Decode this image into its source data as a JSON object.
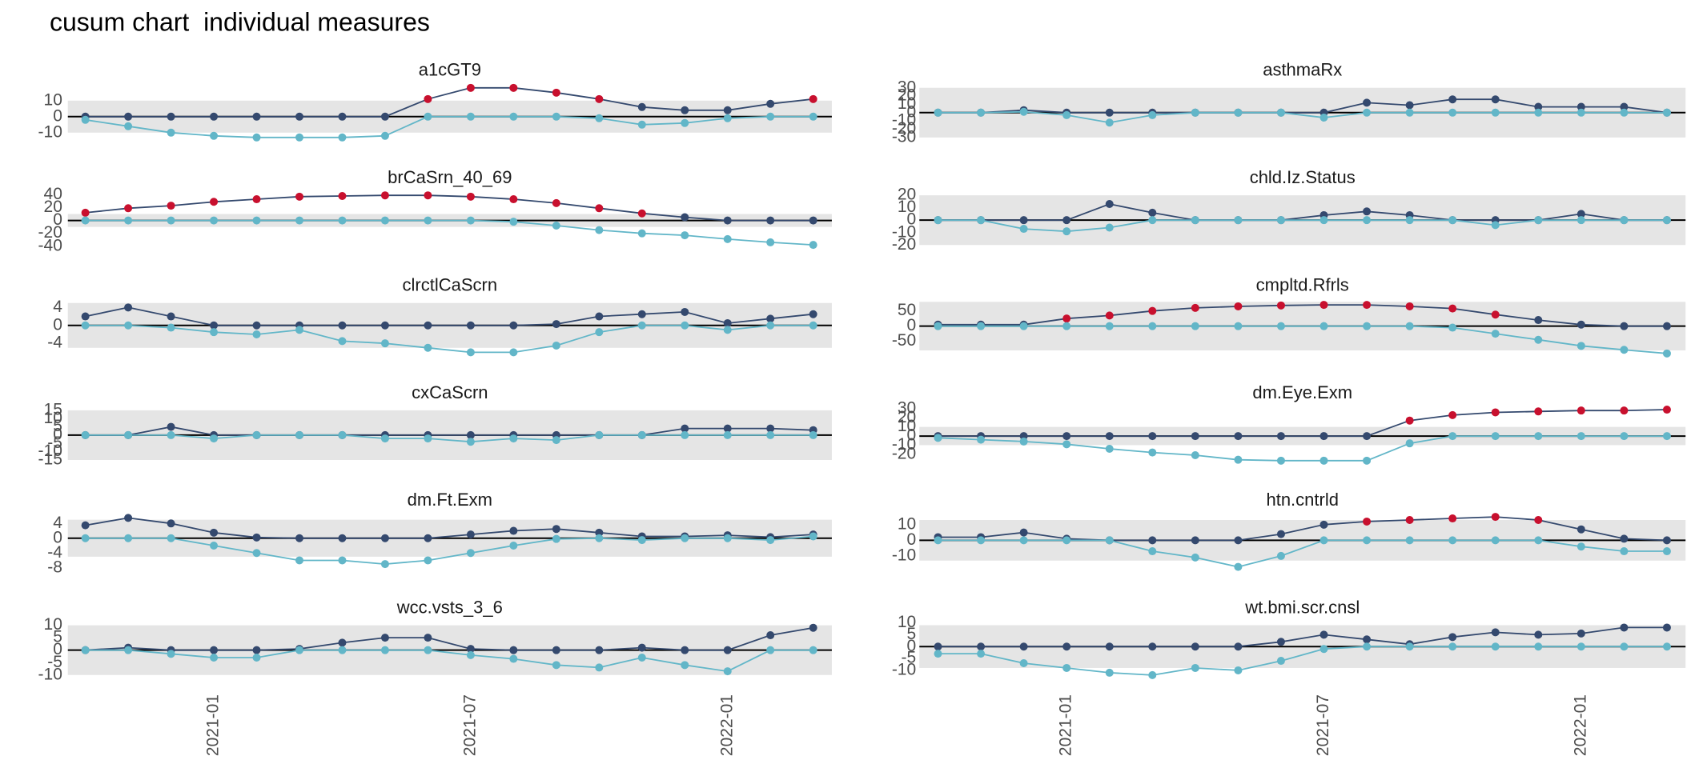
{
  "chart_data": {
    "type": "line",
    "title": "cusum chart  individual measures",
    "x": [
      "2020-10",
      "2020-11",
      "2020-12",
      "2021-01",
      "2021-02",
      "2021-03",
      "2021-04",
      "2021-05",
      "2021-06",
      "2021-07",
      "2021-08",
      "2021-09",
      "2021-10",
      "2021-11",
      "2021-12",
      "2022-01",
      "2022-02",
      "2022-03"
    ],
    "xticks": [
      "2021-01",
      "2021-07",
      "2022-01"
    ],
    "band_color": "#e5e5e5",
    "alert_color": "#c8102e",
    "panels": [
      {
        "title": "a1cGT9",
        "ylim": [
          -14.6,
          19.6
        ],
        "yticks": [
          -10,
          0,
          10
        ],
        "limits": [
          -10,
          10
        ],
        "alert_level": 10,
        "series": [
          {
            "color": "#34496e",
            "alert": true,
            "values": [
              0,
              0,
              0,
              0,
              0,
              0,
              0,
              0,
              11,
              18,
              18,
              15,
              11,
              6,
              4,
              4,
              8,
              11
            ]
          },
          {
            "color": "#62b6c8",
            "values": [
              -2,
              -6,
              -10,
              -12,
              -13,
              -13,
              -13,
              -12,
              0,
              0,
              0,
              0,
              -1,
              -5,
              -4,
              -1,
              0,
              0
            ]
          }
        ]
      },
      {
        "title": "asthmaRx",
        "ylim": [
          -33,
          33
        ],
        "yticks": [
          -30,
          -20,
          -10,
          0,
          10,
          20,
          30
        ],
        "limits": [
          -30,
          30
        ],
        "alert_level": 30,
        "series": [
          {
            "color": "#34496e",
            "alert": true,
            "values": [
              0,
              0,
              3,
              0,
              0,
              0,
              0,
              0,
              0,
              0,
              12,
              9,
              16,
              16,
              7,
              7,
              7,
              0
            ]
          },
          {
            "color": "#62b6c8",
            "values": [
              0,
              0,
              1,
              -3,
              -12,
              -3,
              0,
              0,
              0,
              -6,
              0,
              0,
              0,
              0,
              0,
              0,
              0,
              0
            ]
          }
        ]
      },
      {
        "title": "brCaSrn_40_69",
        "ylim": [
          -42,
          43
        ],
        "yticks": [
          -40,
          -20,
          0,
          20,
          40
        ],
        "limits": [
          -10,
          10
        ],
        "alert_level": 10,
        "series": [
          {
            "color": "#34496e",
            "alert": true,
            "values": [
              12,
              19,
              23,
              29,
              33,
              37,
              38,
              39,
              39,
              37,
              33,
              27,
              19,
              11,
              5,
              0,
              0,
              0
            ]
          },
          {
            "color": "#62b6c8",
            "values": [
              0,
              0,
              0,
              0,
              0,
              0,
              0,
              0,
              0,
              0,
              -2,
              -8,
              -15,
              -20,
              -23,
              -29,
              -34,
              -38
            ]
          }
        ]
      },
      {
        "title": "chld.Iz.Status",
        "ylim": [
          -22,
          22
        ],
        "yticks": [
          -20,
          -10,
          0,
          10,
          20
        ],
        "limits": [
          -20,
          20
        ],
        "alert_level": 20,
        "series": [
          {
            "color": "#34496e",
            "alert": true,
            "values": [
              0,
              0,
              0,
              0,
              13,
              6,
              0,
              0,
              0,
              4,
              7,
              4,
              0,
              0,
              0,
              5,
              0,
              0
            ]
          },
          {
            "color": "#62b6c8",
            "values": [
              0,
              0,
              -7,
              -9,
              -6,
              0,
              0,
              0,
              0,
              0,
              0,
              0,
              0,
              -4,
              0,
              0,
              0,
              0
            ]
          }
        ]
      },
      {
        "title": "clrctlCaScrn",
        "ylim": [
          -6.6,
          5.6
        ],
        "yticks": [
          -4,
          0,
          4
        ],
        "limits": [
          -5,
          5
        ],
        "alert_level": 5,
        "series": [
          {
            "color": "#34496e",
            "alert": true,
            "values": [
              2,
              4,
              2,
              0,
              0,
              0,
              0,
              0,
              0,
              0,
              0,
              0.3,
              2,
              2.5,
              3,
              0.5,
              1.5,
              2.5
            ]
          },
          {
            "color": "#62b6c8",
            "values": [
              0,
              0,
              -0.5,
              -1.5,
              -2,
              -1,
              -3.5,
              -4,
              -5,
              -6,
              -6,
              -4.5,
              -1.5,
              0,
              0,
              -1,
              0,
              0
            ]
          }
        ]
      },
      {
        "title": "cmpltd.Rfrls",
        "ylim": [
          -95,
          85
        ],
        "yticks": [
          -50,
          0,
          50
        ],
        "limits": [
          -80,
          80
        ],
        "alert_level": 22,
        "series": [
          {
            "color": "#34496e",
            "alert": true,
            "values": [
              5,
              5,
              5,
              25,
              35,
              50,
              60,
              65,
              68,
              70,
              70,
              65,
              58,
              38,
              20,
              5,
              0,
              0
            ]
          },
          {
            "color": "#62b6c8",
            "values": [
              0,
              0,
              0,
              0,
              0,
              0,
              0,
              0,
              0,
              0,
              0,
              0,
              -5,
              -25,
              -45,
              -65,
              -78,
              -90
            ]
          }
        ]
      },
      {
        "title": "cxCaScrn",
        "ylim": [
          -16.5,
          16.5
        ],
        "yticks": [
          -15,
          -10,
          -5,
          0,
          5,
          10,
          15
        ],
        "limits": [
          -15,
          15
        ],
        "alert_level": 15,
        "series": [
          {
            "color": "#34496e",
            "alert": true,
            "values": [
              0,
              0,
              5,
              0,
              0,
              0,
              0,
              0,
              0,
              0,
              0,
              0,
              0,
              0,
              4,
              4,
              4,
              3
            ]
          },
          {
            "color": "#62b6c8",
            "values": [
              0,
              0,
              0,
              -2,
              0,
              0,
              0,
              -2,
              -2,
              -4,
              -2,
              -3,
              0,
              0,
              0,
              0,
              0,
              0
            ]
          }
        ]
      },
      {
        "title": "dm.Eye.Exm",
        "ylim": [
          -29,
          31
        ],
        "yticks": [
          -20,
          -10,
          0,
          10,
          20,
          30
        ],
        "limits": [
          -10,
          10
        ],
        "alert_level": 10,
        "series": [
          {
            "color": "#34496e",
            "alert": true,
            "values": [
              0,
              0,
              0,
              0,
              0,
              0,
              0,
              0,
              0,
              0,
              0,
              17,
              23,
              26,
              27,
              28,
              28,
              29
            ]
          },
          {
            "color": "#62b6c8",
            "values": [
              -2,
              -4,
              -6,
              -9,
              -14,
              -18,
              -21,
              -26,
              -27,
              -27,
              -27,
              -8,
              0,
              0,
              0,
              0,
              0,
              0
            ]
          }
        ]
      },
      {
        "title": "dm.Ft.Exm",
        "ylim": [
          -8.6,
          6.2
        ],
        "yticks": [
          -8,
          -4,
          0,
          4
        ],
        "limits": [
          -5,
          5
        ],
        "alert_level": 6,
        "series": [
          {
            "color": "#34496e",
            "alert": true,
            "values": [
              3.5,
              5.5,
              4,
              1.5,
              0.2,
              0,
              0,
              0,
              0,
              1,
              2,
              2.5,
              1.5,
              0.5,
              0.5,
              0.8,
              0.3,
              1
            ]
          },
          {
            "color": "#62b6c8",
            "values": [
              0,
              0,
              0,
              -2,
              -4,
              -6,
              -6,
              -7,
              -6,
              -4,
              -2,
              -0.2,
              0,
              -0.5,
              0,
              0,
              -0.5,
              0.5
            ]
          }
        ]
      },
      {
        "title": "htn.cntrld",
        "ylim": [
          -19,
          16
        ],
        "yticks": [
          -10,
          0,
          10
        ],
        "limits": [
          -13,
          13
        ],
        "alert_level": 11,
        "series": [
          {
            "color": "#34496e",
            "alert": true,
            "values": [
              2,
              2,
              5,
              1,
              0,
              0,
              0,
              0,
              4,
              10,
              12,
              13,
              14,
              15,
              13,
              7,
              1,
              0
            ]
          },
          {
            "color": "#62b6c8",
            "values": [
              0,
              0,
              0,
              0,
              0,
              -7,
              -11,
              -17,
              -10,
              0,
              0,
              0,
              0,
              0,
              0,
              -4,
              -7,
              -7
            ]
          }
        ]
      },
      {
        "title": "wcc.vsts_3_6",
        "ylim": [
          -11,
          11
        ],
        "yticks": [
          -10,
          -5,
          0,
          5,
          10
        ],
        "limits": [
          -10,
          10
        ],
        "alert_level": 10,
        "series": [
          {
            "color": "#34496e",
            "alert": true,
            "values": [
              0,
              1,
              0,
              0,
              0,
              0.5,
              3,
              5,
              5,
              0.5,
              0,
              0,
              0,
              1,
              0,
              0,
              6,
              9
            ]
          },
          {
            "color": "#62b6c8",
            "values": [
              0,
              0,
              -1.5,
              -3,
              -3,
              0,
              0,
              0,
              0,
              -2,
              -3.5,
              -6,
              -7,
              -3,
              -6,
              -8.5,
              0,
              0
            ]
          }
        ]
      },
      {
        "title": "wt.bmi.scr.cnsl",
        "ylim": [
          -13,
          10
        ],
        "yticks": [
          -10,
          -5,
          0,
          5,
          10
        ],
        "limits": [
          -9,
          9
        ],
        "alert_level": 9,
        "series": [
          {
            "color": "#34496e",
            "alert": true,
            "values": [
              0,
              0,
              0,
              0,
              0,
              0,
              0,
              0,
              2,
              5,
              3,
              1,
              4,
              6,
              5,
              5.5,
              8,
              8
            ]
          },
          {
            "color": "#62b6c8",
            "values": [
              -3,
              -3,
              -7,
              -9,
              -11,
              -12,
              -9,
              -10,
              -6,
              -1,
              0,
              0,
              0,
              0,
              0,
              0,
              0,
              0
            ]
          }
        ]
      }
    ]
  }
}
